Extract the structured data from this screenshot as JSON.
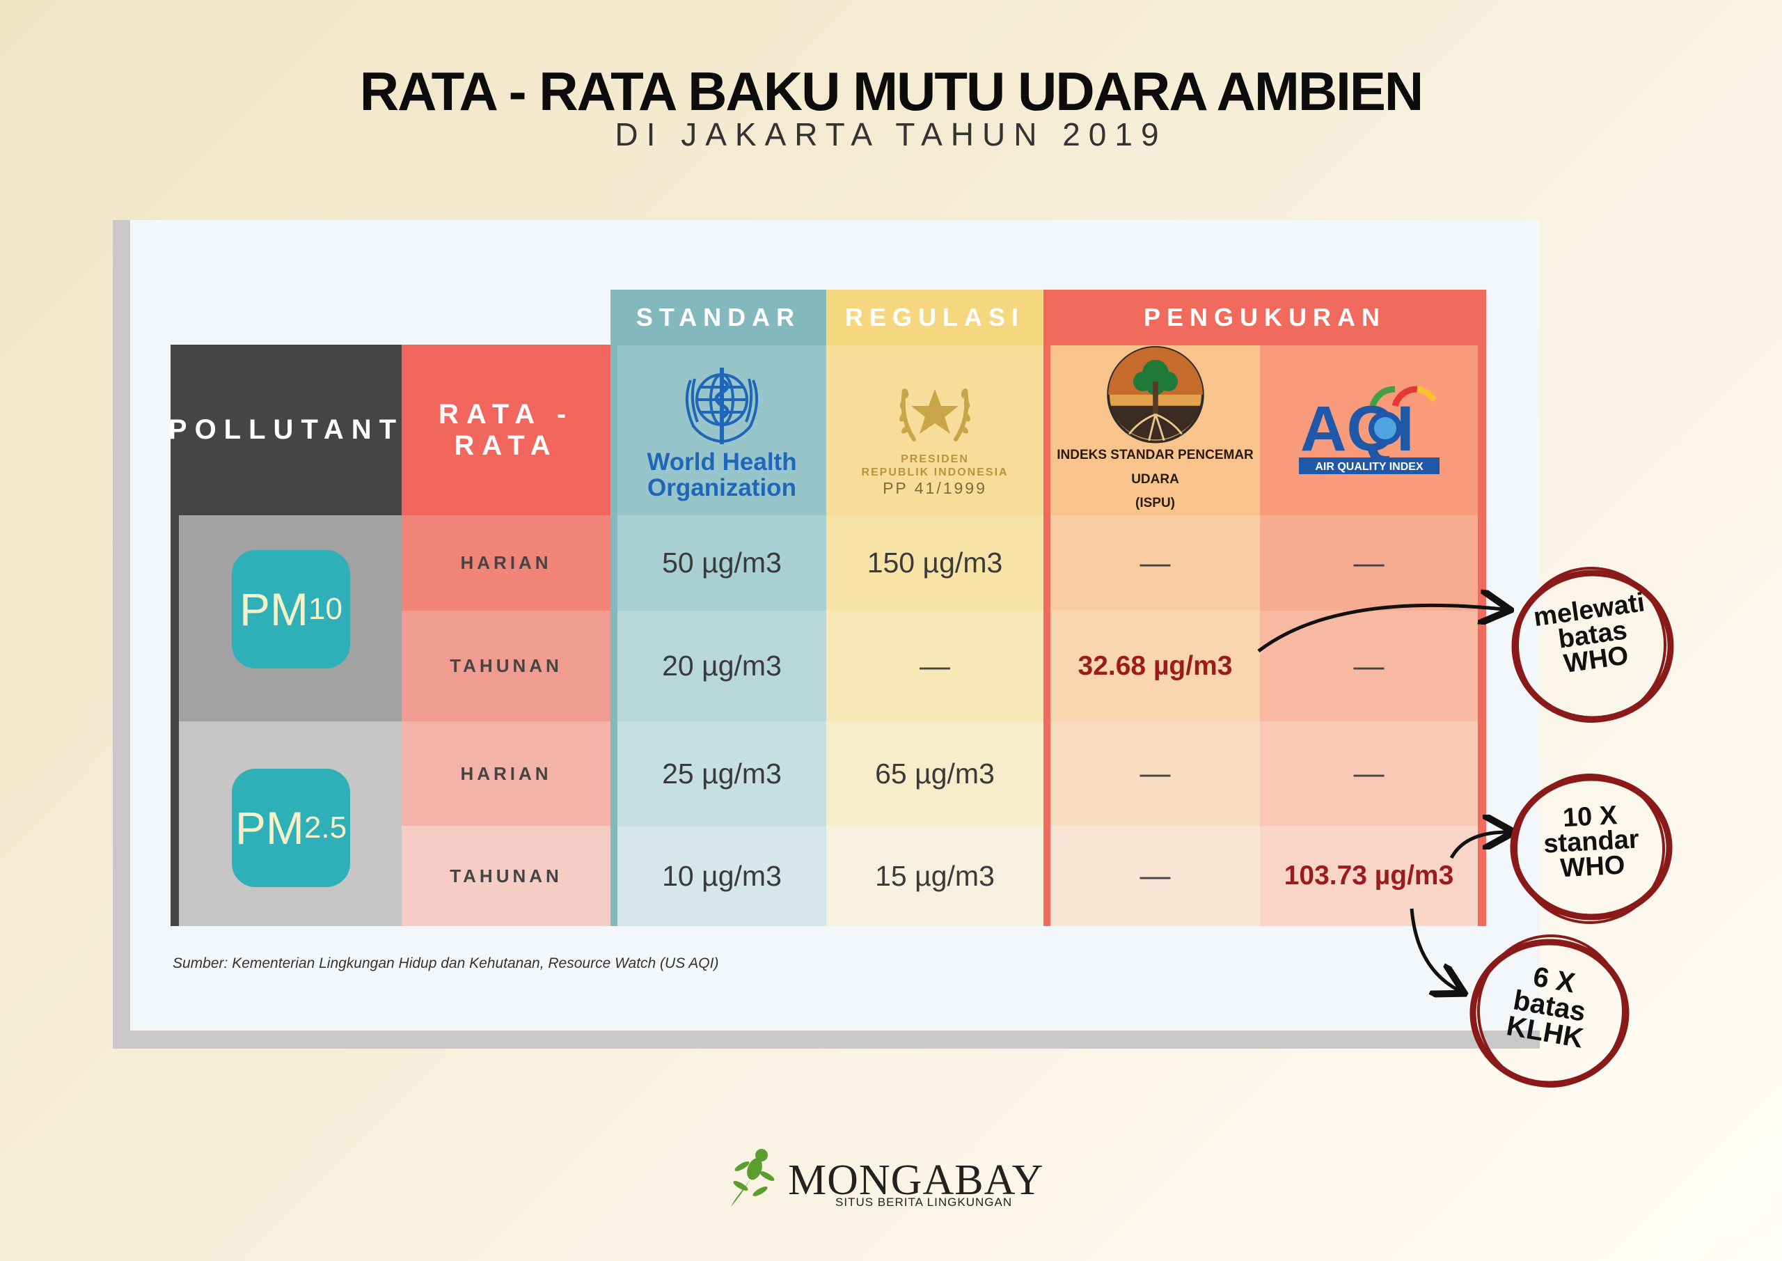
{
  "title": "RATA - RATA BAKU MUTU UDARA AMBIEN",
  "subtitle": "DI JAKARTA TAHUN 2019",
  "header": {
    "pollutant": "POLLUTANT",
    "average": "RATA - RATA",
    "standar": "STANDAR",
    "regulasi": "REGULASI",
    "pengukuran": "PENGUKURAN"
  },
  "logos": {
    "who_line1": "World Health",
    "who_line2": "Organization",
    "presiden_line1": "PRESIDEN",
    "presiden_line2": "REPUBLIK INDONESIA",
    "regulation": "PP 41/1999",
    "ispu_line1": "INDEKS STANDAR PENCEMAR UDARA",
    "ispu_line2": "(ISPU)",
    "aqi": "AQI",
    "aqi_full": "AIR QUALITY INDEX"
  },
  "pollutants": [
    {
      "main": "PM",
      "sub": "10"
    },
    {
      "main": "PM",
      "sub": "2.5"
    }
  ],
  "chart_data": {
    "type": "table",
    "columns": [
      "POLLUTANT",
      "RATA - RATA",
      "World Health Organization",
      "PP 41/1999",
      "ISPU",
      "AQI"
    ],
    "rows": [
      {
        "pollutant": "PM10",
        "period": "HARIAN",
        "who": "50 µg/m3",
        "pp": "150 µg/m3",
        "ispu": "—",
        "aqi": "—"
      },
      {
        "pollutant": "PM10",
        "period": "TAHUNAN",
        "who": "20 µg/m3",
        "pp": "—",
        "ispu": "32.68 µg/m3",
        "aqi": "—"
      },
      {
        "pollutant": "PM2.5",
        "period": "HARIAN",
        "who": "25 µg/m3",
        "pp": "65 µg/m3",
        "ispu": "—",
        "aqi": "—"
      },
      {
        "pollutant": "PM2.5",
        "period": "TAHUNAN",
        "who": "10 µg/m3",
        "pp": "15 µg/m3",
        "ispu": "—",
        "aqi": "103.73 µg/m3"
      }
    ],
    "highlighted": [
      "32.68 µg/m3",
      "103.73 µg/m3"
    ]
  },
  "notes": [
    {
      "line1": "melewati",
      "line2": "batas",
      "line3": "WHO"
    },
    {
      "line1": "10 X",
      "line2": "standar",
      "line3": "WHO"
    },
    {
      "line1": "6 X",
      "line2": "batas",
      "line3": "KLHK"
    }
  ],
  "source": "Sumber: Kementerian Lingkungan Hidup dan Kehutanan, Resource Watch (US AQI)",
  "footer": {
    "brand": "MONGABAY",
    "tagline": "SITUS BERITA LINGKUNGAN"
  },
  "colors": {
    "pollutant_dark": "#444444",
    "rata_red": "#f1675e",
    "standar_teal": "#83b8bc",
    "regulasi_yellow": "#f5d780",
    "pengukuran_red": "#f06a5d",
    "highlight_text": "#9b1c1c",
    "pm_badge": "#2fb0b8",
    "note_circle": "#8a1a1a"
  }
}
